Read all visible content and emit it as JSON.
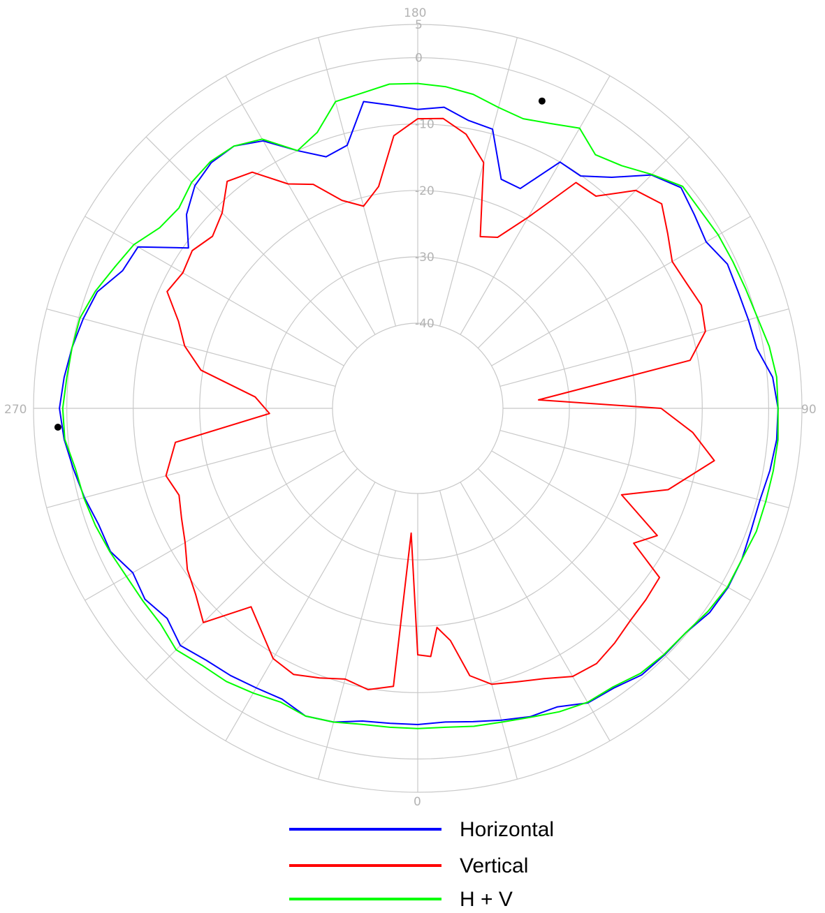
{
  "chart_data": {
    "type": "polar_line",
    "angle_labels": [
      "180",
      "90",
      "0",
      "270"
    ],
    "radial_labels": [
      "5",
      "0",
      "-10",
      "-20",
      "-30",
      "-40"
    ],
    "radial_values": [
      5,
      0,
      -10,
      -20,
      -30,
      -40
    ],
    "rlim": [
      -40,
      5
    ],
    "grid": true,
    "legend_position": "bottom",
    "series": [
      {
        "name": "Horizontal",
        "color": "#0000ff",
        "points": [
          [
            0,
            -5.2
          ],
          [
            5,
            -5.4
          ],
          [
            10,
            -4.9
          ],
          [
            15,
            -4.2
          ],
          [
            20,
            -3.4
          ],
          [
            25,
            -3.2
          ],
          [
            30,
            -1.6
          ],
          [
            35,
            -1.4
          ],
          [
            40,
            -0.4
          ],
          [
            45,
            -0.3
          ],
          [
            50,
            -0.2
          ],
          [
            55,
            0.8
          ],
          [
            60,
            1.1
          ],
          [
            65,
            1.0
          ],
          [
            70,
            0.6
          ],
          [
            75,
            0.5
          ],
          [
            80,
            1.0
          ],
          [
            85,
            1.4
          ],
          [
            90,
            1.4
          ],
          [
            95,
            0.8
          ],
          [
            100,
            -1.0
          ],
          [
            105,
            -1.3
          ],
          [
            110,
            -1.5
          ],
          [
            115,
            -1.4
          ],
          [
            120,
            -2.7
          ],
          [
            125,
            -2.0
          ],
          [
            130,
            -1.1
          ],
          [
            135,
            -3.1
          ],
          [
            140,
            -7.4
          ],
          [
            145,
            -10.1
          ],
          [
            150,
            -10.0
          ],
          [
            155,
            -16.3
          ],
          [
            160,
            -16.1
          ],
          [
            165,
            -9.3
          ],
          [
            170,
            -8.8
          ],
          [
            175,
            -7.3
          ],
          [
            180,
            -7.8
          ],
          [
            185,
            -7.0
          ],
          [
            190,
            -5.9
          ],
          [
            195,
            -11.8
          ],
          [
            200,
            -12.5
          ],
          [
            205,
            -10.0
          ],
          [
            210,
            -6.3
          ],
          [
            215,
            -4.6
          ],
          [
            220,
            -4.5
          ],
          [
            225,
            -5.4
          ],
          [
            230,
            -7.4
          ],
          [
            235,
            -10.7
          ],
          [
            240,
            -4.2
          ],
          [
            245,
            -3.8
          ],
          [
            250,
            -1.5
          ],
          [
            255,
            -0.7
          ],
          [
            260,
            0.0
          ],
          [
            265,
            0.6
          ],
          [
            270,
            1.1
          ],
          [
            275,
            0.6
          ],
          [
            280,
            -0.2
          ],
          [
            285,
            -0.9
          ],
          [
            290,
            -1.7
          ],
          [
            295,
            -1.8
          ],
          [
            300,
            -3.3
          ],
          [
            305,
            -2.7
          ],
          [
            310,
            -3.6
          ],
          [
            315,
            -2.3
          ],
          [
            320,
            -3.3
          ],
          [
            325,
            -3.7
          ],
          [
            330,
            -4.2
          ],
          [
            335,
            -4.5
          ],
          [
            340,
            -3.5
          ],
          [
            345,
            -3.9
          ],
          [
            350,
            -5.0
          ],
          [
            355,
            -5.2
          ]
        ]
      },
      {
        "name": "Vertical",
        "color": "#ff0000",
        "points": [
          [
            0,
            -15.7
          ],
          [
            3,
            -15.4
          ],
          [
            5,
            -19.7
          ],
          [
            8,
            -17.5
          ],
          [
            11,
            -11.8
          ],
          [
            15,
            -9.8
          ],
          [
            20,
            -9.0
          ],
          [
            25,
            -7.9
          ],
          [
            30,
            -6.2
          ],
          [
            35,
            -5.9
          ],
          [
            40,
            -6.7
          ],
          [
            45,
            -7.6
          ],
          [
            50,
            -8.0
          ],
          [
            55,
            -8.4
          ],
          [
            58,
            -14.5
          ],
          [
            62,
            -12.0
          ],
          [
            67,
            -19.5
          ],
          [
            72,
            -13.2
          ],
          [
            80,
            -7.5
          ],
          [
            85,
            -11.3
          ],
          [
            90,
            -16.2
          ],
          [
            94,
            -34.6
          ],
          [
            100,
            -11.2
          ],
          [
            105,
            -8.0
          ],
          [
            110,
            -7.4
          ],
          [
            115,
            -8.2
          ],
          [
            120,
            -8.6
          ],
          [
            125,
            -6.9
          ],
          [
            130,
            -4.9
          ],
          [
            135,
            -6.4
          ],
          [
            140,
            -11.1
          ],
          [
            145,
            -11.3
          ],
          [
            150,
            -19.6
          ],
          [
            155,
            -24.4
          ],
          [
            160,
            -25.3
          ],
          [
            165,
            -14.5
          ],
          [
            170,
            -10.9
          ],
          [
            175,
            -9.0
          ],
          [
            180,
            -9.2
          ],
          [
            185,
            -11.6
          ],
          [
            190,
            -18.9
          ],
          [
            195,
            -21.3
          ],
          [
            200,
            -19.5
          ],
          [
            205,
            -15.6
          ],
          [
            210,
            -13.8
          ],
          [
            215,
            -9.4
          ],
          [
            220,
            -8.2
          ],
          [
            225,
            -11.2
          ],
          [
            230,
            -12.5
          ],
          [
            235,
            -11.4
          ],
          [
            240,
            -12.0
          ],
          [
            245,
            -11.2
          ],
          [
            250,
            -14.5
          ],
          [
            255,
            -16.5
          ],
          [
            260,
            -19.7
          ],
          [
            266,
            -28.3
          ],
          [
            272,
            -30.5
          ],
          [
            278,
            -16.0
          ],
          [
            285,
            -13.6
          ],
          [
            290,
            -14.6
          ],
          [
            295,
            -13.6
          ],
          [
            300,
            -12.4
          ],
          [
            305,
            -10.5
          ],
          [
            310,
            -9.2
          ],
          [
            315,
            -7.2
          ],
          [
            320,
            -13.8
          ],
          [
            330,
            -9.3
          ],
          [
            335,
            -8.6
          ],
          [
            340,
            -9.6
          ],
          [
            345,
            -10.6
          ],
          [
            350,
            -9.8
          ],
          [
            355,
            -10.8
          ],
          [
            357,
            -34.0
          ]
        ]
      },
      {
        "name": "H + V",
        "color": "#00ff00",
        "points": [
          [
            0,
            -4.6
          ],
          [
            5,
            -4.6
          ],
          [
            10,
            -4.2
          ],
          [
            15,
            -3.9
          ],
          [
            20,
            -3.3
          ],
          [
            25,
            -2.4
          ],
          [
            30,
            -1.7
          ],
          [
            35,
            -1.6
          ],
          [
            40,
            -0.7
          ],
          [
            45,
            -0.4
          ],
          [
            50,
            -0.2
          ],
          [
            55,
            0.5
          ],
          [
            60,
            1.0
          ],
          [
            65,
            1.0
          ],
          [
            70,
            1.4
          ],
          [
            75,
            1.4
          ],
          [
            80,
            1.5
          ],
          [
            85,
            1.6
          ],
          [
            90,
            1.4
          ],
          [
            95,
            1.4
          ],
          [
            100,
            0.9
          ],
          [
            105,
            0.1
          ],
          [
            110,
            -0.3
          ],
          [
            115,
            -0.5
          ],
          [
            120,
            -0.6
          ],
          [
            125,
            -0.9
          ],
          [
            130,
            -0.8
          ],
          [
            135,
            -3.0
          ],
          [
            140,
            -5.1
          ],
          [
            145,
            -6.2
          ],
          [
            150,
            -4.1
          ],
          [
            155,
            -5.5
          ],
          [
            160,
            -6.4
          ],
          [
            165,
            -5.9
          ],
          [
            170,
            -4.8
          ],
          [
            175,
            -4.2
          ],
          [
            180,
            -3.9
          ],
          [
            185,
            -3.8
          ],
          [
            190,
            -4.6
          ],
          [
            195,
            -5.0
          ],
          [
            200,
            -8.6
          ],
          [
            205,
            -10.0
          ],
          [
            210,
            -6.0
          ],
          [
            215,
            -4.6
          ],
          [
            220,
            -4.3
          ],
          [
            225,
            -4.7
          ],
          [
            230,
            -5.9
          ],
          [
            235,
            -5.4
          ],
          [
            240,
            -3.5
          ],
          [
            245,
            -2.5
          ],
          [
            250,
            -1.2
          ],
          [
            255,
            -0.2
          ],
          [
            260,
            0.0
          ],
          [
            265,
            0.2
          ],
          [
            270,
            0.6
          ],
          [
            275,
            0.5
          ],
          [
            280,
            -0.5
          ],
          [
            285,
            -0.8
          ],
          [
            290,
            -1.2
          ],
          [
            295,
            -1.7
          ],
          [
            300,
            -2.2
          ],
          [
            305,
            -2.3
          ],
          [
            310,
            -2.3
          ],
          [
            315,
            -1.4
          ],
          [
            320,
            -2.3
          ],
          [
            325,
            -2.6
          ],
          [
            330,
            -3.3
          ],
          [
            335,
            -4.0
          ],
          [
            340,
            -3.5
          ],
          [
            345,
            -3.9
          ],
          [
            350,
            -4.5
          ],
          [
            355,
            -4.6
          ]
        ]
      }
    ],
    "markers": [
      {
        "angle": 158,
        "value": -2.9
      },
      {
        "angle": 273,
        "value": 1.4
      }
    ]
  }
}
